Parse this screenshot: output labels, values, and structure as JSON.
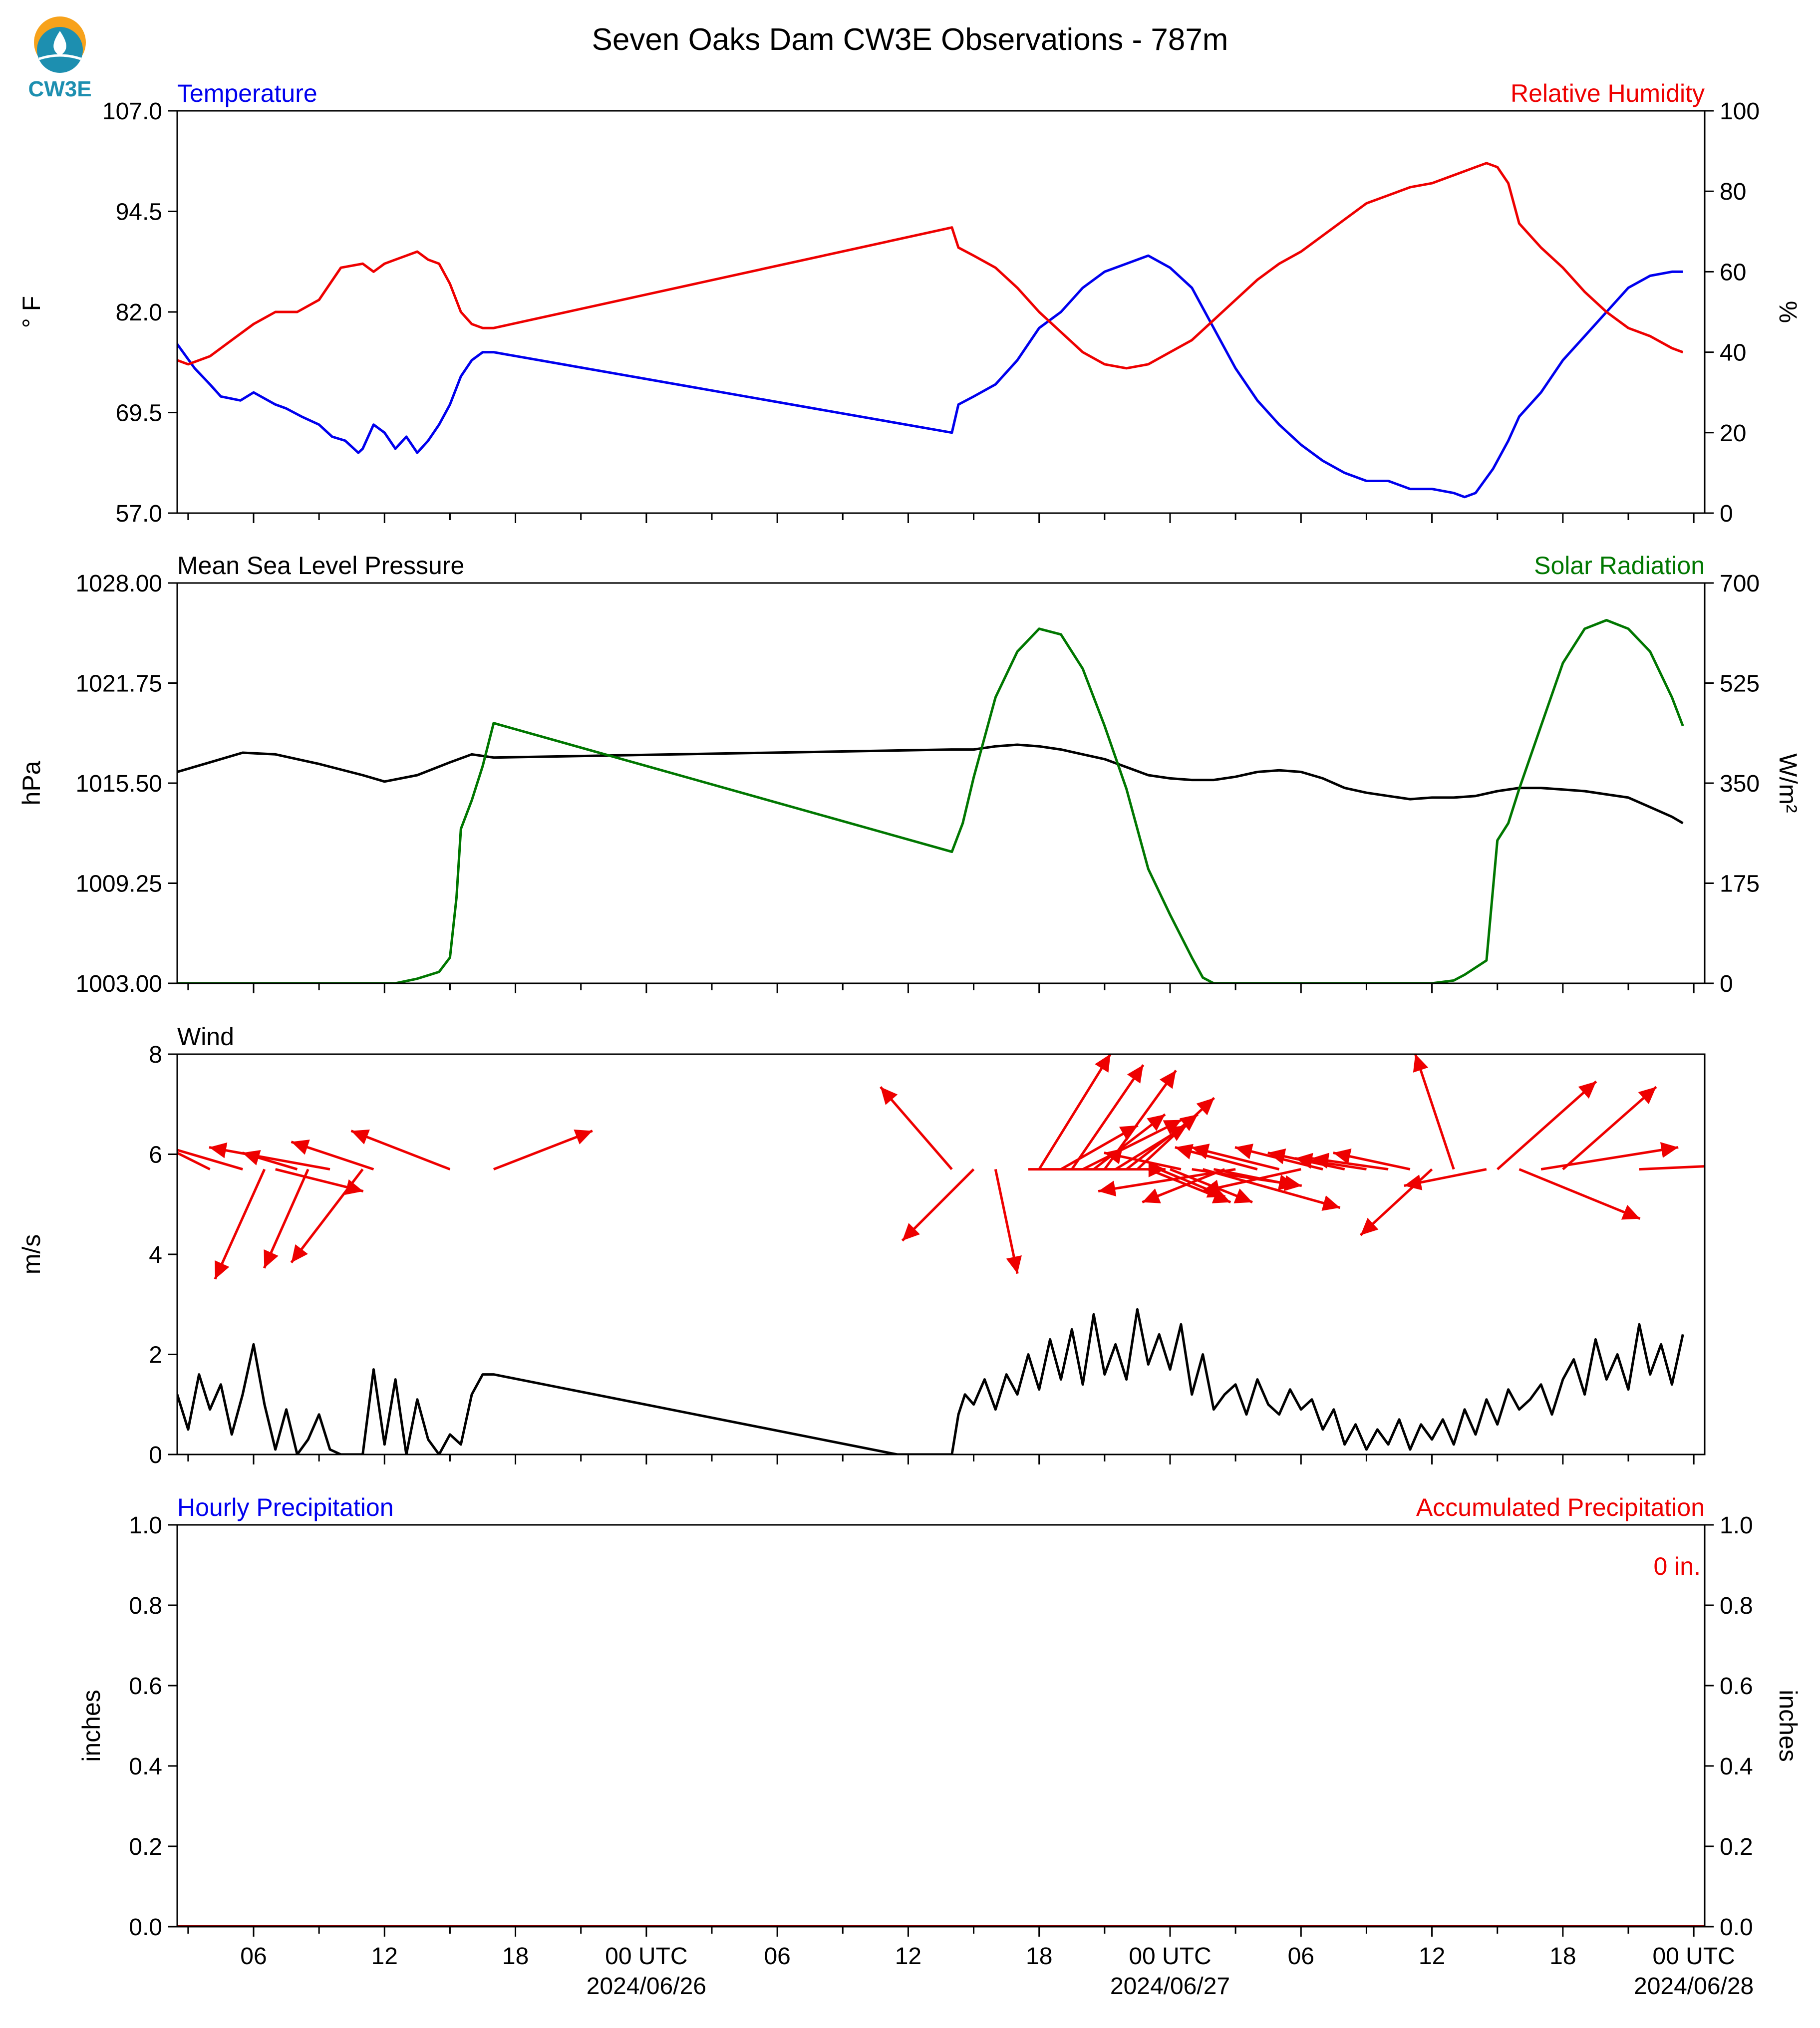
{
  "title": "Seven Oaks Dam CW3E Observations - 787m",
  "logo": {
    "text": "CW3E",
    "color": "#1d8fb0",
    "accent": "#f7a21b",
    "icon": "water-drop-icon"
  },
  "colors": {
    "blue": "#0000ee",
    "red": "#ee0000",
    "green": "#007700",
    "black": "#000000"
  },
  "time_axis": {
    "start_hour": 2.5,
    "end_hour": 72.5,
    "tick_labels": [
      {
        "hour": 6,
        "line1": "06",
        "line2": ""
      },
      {
        "hour": 12,
        "line1": "12",
        "line2": ""
      },
      {
        "hour": 18,
        "line1": "18",
        "line2": ""
      },
      {
        "hour": 24,
        "line1": "00 UTC",
        "line2": "2024/06/26"
      },
      {
        "hour": 30,
        "line1": "06",
        "line2": ""
      },
      {
        "hour": 36,
        "line1": "12",
        "line2": ""
      },
      {
        "hour": 42,
        "line1": "18",
        "line2": ""
      },
      {
        "hour": 48,
        "line1": "00 UTC",
        "line2": "2024/06/27"
      },
      {
        "hour": 54,
        "line1": "06",
        "line2": ""
      },
      {
        "hour": 60,
        "line1": "12",
        "line2": ""
      },
      {
        "hour": 66,
        "line1": "18",
        "line2": ""
      },
      {
        "hour": 72,
        "line1": "00 UTC",
        "line2": "2024/06/28"
      }
    ]
  },
  "chart_data": [
    {
      "type": "line",
      "left_title": "Temperature",
      "right_title": "Relative Humidity",
      "ylabel": "° F",
      "ylabel_right": "%",
      "ylim": [
        57.0,
        107.0
      ],
      "ylim_right": [
        0,
        100
      ],
      "yticks": [
        "57.0",
        "69.5",
        "82.0",
        "94.5",
        "107.0"
      ],
      "yticks_right": [
        "0",
        "20",
        "40",
        "60",
        "80",
        "100"
      ],
      "series": [
        {
          "color": "blue",
          "axis": "left",
          "x": [
            2.5,
            3.3,
            4,
            4.5,
            5.4,
            6,
            7,
            7.5,
            8.2,
            9,
            9.6,
            10.2,
            10.8,
            11,
            11.5,
            12,
            12.5,
            13,
            13.5,
            14,
            14.5,
            15,
            15.5,
            16,
            16.5,
            17,
            38,
            38.3,
            39,
            40,
            41,
            42,
            43,
            44,
            45,
            46,
            47,
            48,
            49,
            50,
            51,
            52,
            53,
            54,
            55,
            56,
            57,
            58,
            59,
            60,
            61,
            61.5,
            62,
            62.8,
            63.5,
            64,
            65,
            66,
            67,
            68,
            69,
            70,
            71,
            71.5
          ],
          "y": [
            78,
            75,
            73,
            71.5,
            71,
            72,
            70.5,
            70,
            69,
            68,
            66.5,
            66,
            64.5,
            65,
            68,
            67,
            65,
            66.5,
            64.5,
            66,
            68,
            70.5,
            74,
            76,
            77,
            77,
            67,
            70.5,
            71.5,
            73,
            76,
            80,
            82,
            85,
            87,
            88,
            89,
            87.5,
            85,
            80,
            75,
            71,
            68,
            65.5,
            63.5,
            62,
            61,
            61,
            60,
            60,
            59.5,
            59,
            59.5,
            62.5,
            66,
            69,
            72,
            76,
            79,
            82,
            85,
            86.5,
            87,
            87
          ]
        },
        {
          "color": "red",
          "axis": "right",
          "x": [
            2.5,
            3,
            4,
            5,
            6,
            7,
            8,
            9,
            10,
            11,
            11.5,
            12,
            12.5,
            13,
            13.5,
            14,
            14.5,
            15,
            15.5,
            16,
            16.5,
            17,
            38,
            38.3,
            39,
            40,
            41,
            42,
            43,
            44,
            45,
            46,
            47,
            48,
            49,
            50,
            51,
            52,
            53,
            54,
            55,
            56,
            57,
            58,
            59,
            60,
            61,
            62,
            62.5,
            63,
            63.5,
            64,
            65,
            66,
            67,
            68,
            69,
            70,
            71,
            71.5
          ],
          "y": [
            38,
            37,
            39,
            43,
            47,
            50,
            50,
            53,
            61,
            62,
            60,
            62,
            63,
            64,
            65,
            63,
            62,
            57,
            50,
            47,
            46,
            46,
            71,
            66,
            64,
            61,
            56,
            50,
            45,
            40,
            37,
            36,
            37,
            40,
            43,
            48,
            53,
            58,
            62,
            65,
            69,
            73,
            77,
            79,
            81,
            82,
            84,
            86,
            87,
            86,
            82,
            72,
            66,
            61,
            55,
            50,
            46,
            44,
            41,
            40
          ]
        }
      ]
    },
    {
      "type": "line",
      "left_title": "Mean Sea Level Pressure",
      "right_title": "Solar Radiation",
      "ylabel": "hPa",
      "ylabel_right": "W/m²",
      "ylim": [
        1003.0,
        1028.0
      ],
      "ylim_right": [
        0,
        700
      ],
      "yticks": [
        "1003.00",
        "1009.25",
        "1015.50",
        "1021.75",
        "1028.00"
      ],
      "yticks_right": [
        "0",
        "175",
        "350",
        "525",
        "700"
      ],
      "series": [
        {
          "color": "black",
          "axis": "left",
          "x": [
            2.5,
            4,
            5.5,
            7,
            9,
            11,
            12,
            13.5,
            15,
            16,
            16.5,
            17,
            38,
            39,
            40,
            41,
            42,
            43,
            44,
            45,
            46,
            47,
            48,
            49,
            50,
            51,
            52,
            53,
            54,
            55,
            56,
            57,
            58,
            59,
            60,
            61,
            62,
            63,
            64,
            65,
            66,
            67,
            68,
            69,
            70,
            71,
            71.5
          ],
          "y": [
            1016.2,
            1016.8,
            1017.4,
            1017.3,
            1016.7,
            1016.0,
            1015.6,
            1016.0,
            1016.8,
            1017.3,
            1017.2,
            1017.1,
            1017.6,
            1017.6,
            1017.8,
            1017.9,
            1017.8,
            1017.6,
            1017.3,
            1017.0,
            1016.5,
            1016.0,
            1015.8,
            1015.7,
            1015.7,
            1015.9,
            1016.2,
            1016.3,
            1016.2,
            1015.8,
            1015.2,
            1014.9,
            1014.7,
            1014.5,
            1014.6,
            1014.6,
            1014.7,
            1015.0,
            1015.2,
            1015.2,
            1015.1,
            1015.0,
            1014.8,
            1014.6,
            1014.0,
            1013.4,
            1013.0
          ]
        },
        {
          "color": "green",
          "axis": "right",
          "x": [
            2.5,
            12.5,
            13.5,
            14.5,
            15,
            15.3,
            15.5,
            16,
            16.5,
            17,
            38,
            38.5,
            39,
            40,
            41,
            42,
            43,
            44,
            45,
            46,
            47,
            48,
            49,
            49.5,
            50,
            60,
            61,
            61.5,
            62.5,
            63,
            63.5,
            64,
            65,
            66,
            67,
            68,
            69,
            70,
            71,
            71.5
          ],
          "y": [
            0,
            0,
            8,
            20,
            45,
            150,
            270,
            320,
            380,
            455,
            230,
            280,
            360,
            500,
            580,
            620,
            610,
            550,
            450,
            340,
            200,
            120,
            45,
            10,
            0,
            0,
            5,
            15,
            40,
            250,
            280,
            340,
            450,
            560,
            620,
            635,
            620,
            580,
            500,
            450
          ]
        }
      ]
    },
    {
      "type": "line",
      "left_title": "Wind",
      "ylabel": "m/s",
      "ylim": [
        0,
        8
      ],
      "yticks": [
        "0",
        "2",
        "4",
        "6",
        "8"
      ],
      "series": [
        {
          "color": "black",
          "axis": "left",
          "x": [
            2.5,
            3,
            3.5,
            4,
            4.5,
            5,
            5.5,
            6,
            6.5,
            7,
            7.5,
            8,
            8.5,
            9,
            9.5,
            10,
            10.5,
            11,
            11.5,
            12,
            12.5,
            13,
            13.5,
            14,
            14.5,
            15,
            15.5,
            16,
            16.5,
            17,
            35.5,
            38,
            38.3,
            38.6,
            39,
            39.5,
            40,
            40.5,
            41,
            41.5,
            42,
            42.5,
            43,
            43.5,
            44,
            44.5,
            45,
            45.5,
            46,
            46.5,
            47,
            47.5,
            48,
            48.5,
            49,
            49.5,
            50,
            50.5,
            51,
            51.5,
            52,
            52.5,
            53,
            53.5,
            54,
            54.5,
            55,
            55.5,
            56,
            56.5,
            57,
            57.5,
            58,
            58.5,
            59,
            59.5,
            60,
            60.5,
            61,
            61.5,
            62,
            62.5,
            63,
            63.5,
            64,
            64.5,
            65,
            65.5,
            66,
            66.5,
            67,
            67.5,
            68,
            68.5,
            69,
            69.5,
            70,
            70.5,
            71,
            71.5
          ],
          "y": [
            1.2,
            0.5,
            1.6,
            0.9,
            1.4,
            0.4,
            1.2,
            2.2,
            1.0,
            0.1,
            0.9,
            0.0,
            0.3,
            0.8,
            0.1,
            0.0,
            0.0,
            0.0,
            1.7,
            0.2,
            1.5,
            0.0,
            1.1,
            0.3,
            0.0,
            0.4,
            0.2,
            1.2,
            1.6,
            1.6,
            0.0,
            0.0,
            0.8,
            1.2,
            1.0,
            1.5,
            0.9,
            1.6,
            1.2,
            2.0,
            1.3,
            2.3,
            1.5,
            2.5,
            1.4,
            2.8,
            1.6,
            2.2,
            1.5,
            2.9,
            1.8,
            2.4,
            1.7,
            2.6,
            1.2,
            2.0,
            0.9,
            1.2,
            1.4,
            0.8,
            1.5,
            1.0,
            0.8,
            1.3,
            0.9,
            1.1,
            0.5,
            0.9,
            0.2,
            0.6,
            0.1,
            0.5,
            0.2,
            0.7,
            0.1,
            0.6,
            0.3,
            0.7,
            0.2,
            0.9,
            0.4,
            1.1,
            0.6,
            1.3,
            0.9,
            1.1,
            1.4,
            0.8,
            1.5,
            1.9,
            1.2,
            2.3,
            1.5,
            2.0,
            1.3,
            2.6,
            1.6,
            2.2,
            1.4,
            2.4
          ]
        }
      ],
      "arrows": [
        {
          "x": 4,
          "dx": -1.8,
          "dy": 0.9
        },
        {
          "x": 5.5,
          "dx": -1.7,
          "dy": 0.5
        },
        {
          "x": 6.5,
          "dx": -0.9,
          "dy": -2.0
        },
        {
          "x": 7,
          "dx": 1.6,
          "dy": -0.4
        },
        {
          "x": 8,
          "dx": -1.0,
          "dy": 0.3
        },
        {
          "x": 8.5,
          "dx": -0.8,
          "dy": -1.8
        },
        {
          "x": 9.5,
          "dx": -2.2,
          "dy": 0.4
        },
        {
          "x": 11,
          "dx": -1.3,
          "dy": -1.7
        },
        {
          "x": 11.5,
          "dx": -1.5,
          "dy": 0.5
        },
        {
          "x": 15,
          "dx": -1.8,
          "dy": 0.7
        },
        {
          "x": 17,
          "dx": 1.8,
          "dy": 0.7
        },
        {
          "x": 38,
          "dx": -1.3,
          "dy": 1.5
        },
        {
          "x": 39,
          "dx": -1.3,
          "dy": -1.3
        },
        {
          "x": 40,
          "dx": 0.4,
          "dy": -1.9
        },
        {
          "x": 41.5,
          "dx": 2.5,
          "dy": 0.0
        },
        {
          "x": 42,
          "dx": 1.3,
          "dy": 2.1
        },
        {
          "x": 43,
          "dx": 1.4,
          "dy": 0.8
        },
        {
          "x": 43.5,
          "dx": 1.3,
          "dy": 1.9
        },
        {
          "x": 44,
          "dx": 1.8,
          "dy": 0.9
        },
        {
          "x": 44.5,
          "dx": 1.3,
          "dy": 1.0
        },
        {
          "x": 45,
          "dx": 1.3,
          "dy": 1.8
        },
        {
          "x": 45.5,
          "dx": 1.3,
          "dy": 0.8
        },
        {
          "x": 46,
          "dx": 1.3,
          "dy": 1.0
        },
        {
          "x": 46.5,
          "dx": 1.4,
          "dy": 1.3
        },
        {
          "x": 47,
          "dx": 1.5,
          "dy": -0.6
        },
        {
          "x": 47.5,
          "dx": 1.2,
          "dy": -0.5
        },
        {
          "x": 48,
          "dx": 1.5,
          "dy": -0.6
        },
        {
          "x": 48.5,
          "dx": -1.4,
          "dy": 0.3
        },
        {
          "x": 49,
          "dx": 2.0,
          "dy": -0.3
        },
        {
          "x": 49.5,
          "dx": 2.5,
          "dy": -0.7
        },
        {
          "x": 50,
          "dx": 1.5,
          "dy": -0.3
        },
        {
          "x": 50.5,
          "dx": -1.5,
          "dy": -0.6
        },
        {
          "x": 51,
          "dx": -2.5,
          "dy": -0.4
        },
        {
          "x": 52,
          "dx": -1.5,
          "dy": 0.4
        },
        {
          "x": 53,
          "dx": -1.6,
          "dy": 0.4
        },
        {
          "x": 54,
          "dx": -1.8,
          "dy": -0.4
        },
        {
          "x": 55,
          "dx": -1.6,
          "dy": 0.4
        },
        {
          "x": 56,
          "dx": -1.4,
          "dy": 0.3
        },
        {
          "x": 57,
          "dx": -1.3,
          "dy": 0.2
        },
        {
          "x": 58,
          "dx": -1.4,
          "dy": 0.2
        },
        {
          "x": 59,
          "dx": -1.4,
          "dy": 0.3
        },
        {
          "x": 60,
          "dx": -1.3,
          "dy": -1.2
        },
        {
          "x": 61,
          "dx": -0.7,
          "dy": 2.1
        },
        {
          "x": 62.5,
          "dx": -1.5,
          "dy": -0.3
        },
        {
          "x": 63,
          "dx": 1.8,
          "dy": 1.6
        },
        {
          "x": 64,
          "dx": 2.2,
          "dy": -0.9
        },
        {
          "x": 65,
          "dx": 2.5,
          "dy": 0.4
        },
        {
          "x": 66,
          "dx": 1.7,
          "dy": 1.5
        },
        {
          "x": 69.5,
          "dx": 2.2,
          "dy": 0.1
        }
      ]
    },
    {
      "type": "bar",
      "left_title": "Hourly Precipitation",
      "right_title": "Accumulated Precipitation",
      "ylabel": "inches",
      "ylabel_right": "inches",
      "ylim": [
        0,
        1.0
      ],
      "ylim_right": [
        0,
        1.0
      ],
      "yticks": [
        "0.0",
        "0.2",
        "0.4",
        "0.6",
        "0.8",
        "1.0"
      ],
      "yticks_right": [
        "0.0",
        "0.2",
        "0.4",
        "0.6",
        "0.8",
        "1.0"
      ],
      "accumulated_label": "0 in.",
      "hourly_values": [],
      "accumulated_values": [
        0
      ]
    }
  ]
}
